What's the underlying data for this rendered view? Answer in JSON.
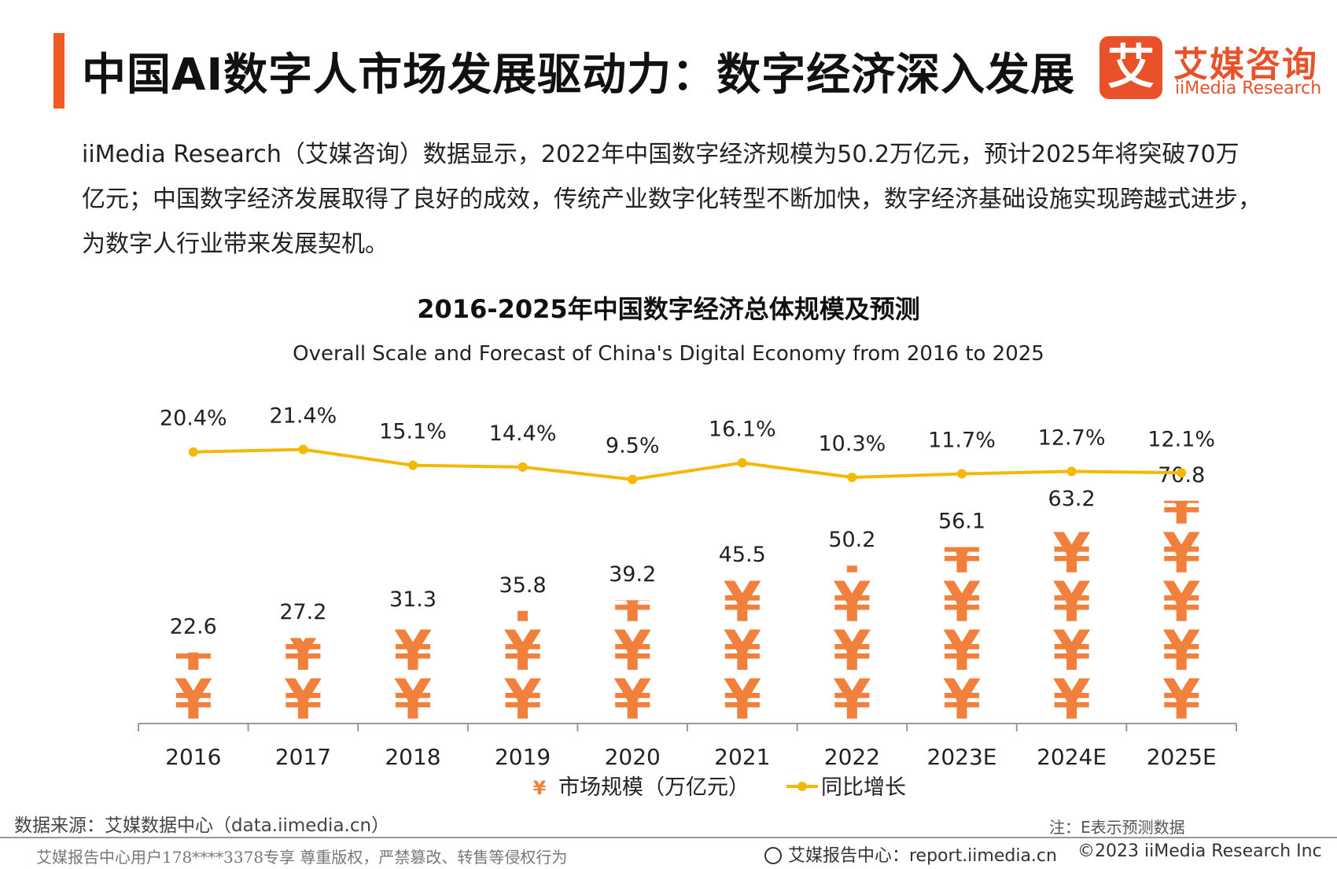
{
  "header": {
    "title": "中国AI数字人市场发展驱动力：数字经济深入发展",
    "logo_mark": "艾",
    "logo_cn": "艾媒咨询",
    "logo_en": "iiMedia Research"
  },
  "intro_text": "iiMedia Research（艾媒咨询）数据显示，2022年中国数字经济规模为50.2万亿元，预计2025年将突破70万亿元；中国数字经济发展取得了良好的成效，传统产业数字化转型不断加快，数字经济基础设施实现跨越式进步，为数字人行业带来发展契机。",
  "chart_data": {
    "type": "bar",
    "title": "2016-2025年中国数字经济总体规模及预测",
    "subtitle": "Overall Scale and Forecast of China's Digital Economy from 2016 to 2025",
    "categories": [
      "2016",
      "2017",
      "2018",
      "2019",
      "2020",
      "2021",
      "2022",
      "2023E",
      "2024E",
      "2025E"
    ],
    "series": [
      {
        "name": "市场规模（万亿元）",
        "type": "pictograph-bar",
        "symbol": "¥",
        "values": [
          22.6,
          27.2,
          31.3,
          35.8,
          39.2,
          45.5,
          50.2,
          56.1,
          63.2,
          70.8
        ],
        "labels": [
          "22.6",
          "27.2",
          "31.3",
          "35.8",
          "39.2",
          "45.5",
          "50.2",
          "56.1",
          "63.2",
          "70.8"
        ]
      },
      {
        "name": "同比增长",
        "type": "line",
        "values": [
          20.4,
          21.4,
          15.1,
          14.4,
          9.5,
          16.1,
          10.3,
          11.7,
          12.7,
          12.1
        ],
        "labels": [
          "20.4%",
          "21.4%",
          "15.1%",
          "14.4%",
          "9.5%",
          "16.1%",
          "10.3%",
          "11.7%",
          "12.7%",
          "12.1%"
        ]
      }
    ],
    "legend": {
      "position": "bottom-center",
      "bar_label": "市场规模（万亿元）",
      "line_label": "同比增长",
      "bar_symbol": "¥"
    },
    "colors": {
      "bar": "#f0803c",
      "line": "#f5b800",
      "axis": "#999999"
    },
    "ylim_bar": [
      0,
      80
    ],
    "ylim_line": [
      0,
      50
    ],
    "grid": false
  },
  "footer": {
    "source": "数据来源：艾媒数据中心（data.iimedia.cn）",
    "note": "注：E表示预测数据",
    "user_line": "艾媒报告中心用户178****3378专享 尊重版权，严禁篡改、转售等侵权行为",
    "site": "艾媒报告中心：report.iimedia.cn",
    "copyright": "©2023  iiMedia Research  Inc"
  }
}
